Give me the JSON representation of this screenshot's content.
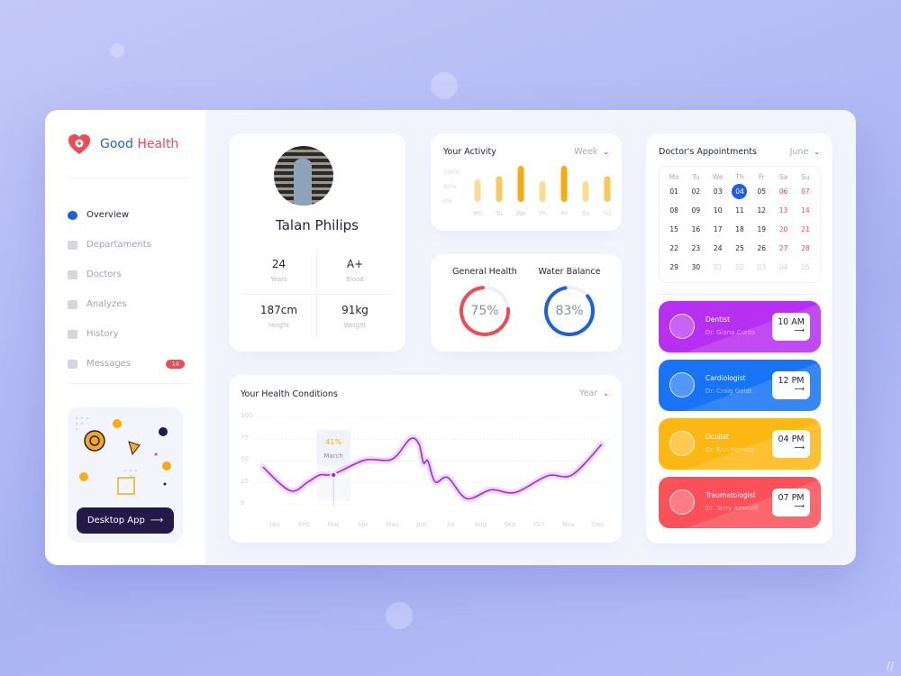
{
  "brand": {
    "part1": "Good",
    "part2": "Health"
  },
  "sidebar": {
    "items": [
      {
        "label": "Overview",
        "icon": "pie-chart-icon",
        "active": true
      },
      {
        "label": "Departaments",
        "icon": "building-icon"
      },
      {
        "label": "Doctors",
        "icon": "users-icon"
      },
      {
        "label": "Analyzes",
        "icon": "monitor-icon"
      },
      {
        "label": "History",
        "icon": "calendar-icon"
      },
      {
        "label": "Messages",
        "icon": "message-icon",
        "badge": "14"
      }
    ],
    "promo_button": "Desktop App",
    "promo_arrow": "⟶"
  },
  "profile": {
    "name": "Talan Philips",
    "stats": [
      {
        "value": "24",
        "label": "Years"
      },
      {
        "value": "A+",
        "label": "Blood"
      },
      {
        "value": "187cm",
        "label": "Height"
      },
      {
        "value": "91kg",
        "label": "Weight"
      }
    ]
  },
  "activity": {
    "title": "Your Activity",
    "period": "Week",
    "chevron": "⌄",
    "y_ticks": [
      "100%",
      "50%",
      "0%"
    ],
    "days": [
      "Mo",
      "Tu",
      "We",
      "Th",
      "Fr",
      "Sa",
      "Su"
    ],
    "values": [
      60,
      70,
      100,
      55,
      100,
      55,
      70
    ],
    "colors": {
      "low": "#fbdc90",
      "mid": "#f8c95a",
      "high": "#f7ab0e"
    }
  },
  "gauges": [
    {
      "title": "General Health",
      "value": 75,
      "label": "75%",
      "color": "#ee4b55"
    },
    {
      "title": "Water Balance",
      "value": 83,
      "label": "83%",
      "color": "#1e5fe0"
    }
  ],
  "chart_data": {
    "type": "line",
    "title": "Your Health Conditions",
    "period": "Year",
    "categories": [
      "Jan",
      "Feb",
      "Mar",
      "Apr",
      "May",
      "Jun",
      "Jul",
      "Aug",
      "Sep",
      "Oct",
      "Nov",
      "Dec"
    ],
    "y_ticks": [
      "100",
      "75",
      "50",
      "25",
      "0"
    ],
    "ylim": [
      0,
      100
    ],
    "grid": true,
    "x": [
      -0.4,
      0.52,
      1.13,
      1.53,
      2.0,
      3.07,
      3.99,
      4.6,
      4.9,
      5.06,
      5.21,
      5.46,
      5.89,
      6.53,
      7.36,
      8.19,
      9.29,
      10.12,
      11.13
    ],
    "values": [
      40,
      13,
      23,
      31,
      32,
      48,
      49,
      72,
      67,
      45,
      47,
      23,
      28,
      4,
      14,
      11,
      30,
      31,
      66
    ],
    "tooltip": {
      "value": "41%",
      "label": "March"
    },
    "line_color": "#9b2fd8"
  },
  "appointments": {
    "title": "Doctor's Appointments",
    "month": "June",
    "weekdays": [
      "Mo",
      "Tu",
      "We",
      "Th",
      "Fr",
      "Sa",
      "Su"
    ],
    "days": [
      "01",
      "02",
      "03",
      "04",
      "05",
      "06",
      "07",
      "08",
      "09",
      "10",
      "11",
      "12",
      "13",
      "14",
      "15",
      "16",
      "17",
      "18",
      "19",
      "20",
      "21",
      "22",
      "23",
      "24",
      "25",
      "26",
      "27",
      "28",
      "29",
      "30",
      "01",
      "02",
      "03",
      "04",
      "05"
    ],
    "selected": "04",
    "items": [
      {
        "specialty": "Dentist",
        "doctor": "Dr. Giana Curtis",
        "time": "10 AM",
        "color": "#b72ff0",
        "icon": "tooth-icon"
      },
      {
        "specialty": "Cardiologist",
        "doctor": "Dr. Craig Geidt",
        "time": "12 PM",
        "color": "#1874f5",
        "icon": "heart-monitor-icon"
      },
      {
        "specialty": "Oculist",
        "doctor": "Dr. Erin Herwitz",
        "time": "04 PM",
        "color": "#fdb713",
        "icon": "eye-icon"
      },
      {
        "specialty": "Traumatologist",
        "doctor": "Dr. Terry Aminoff",
        "time": "07 PM",
        "color": "#fa5059",
        "icon": "bandage-icon"
      }
    ],
    "arrow": "⟶"
  }
}
